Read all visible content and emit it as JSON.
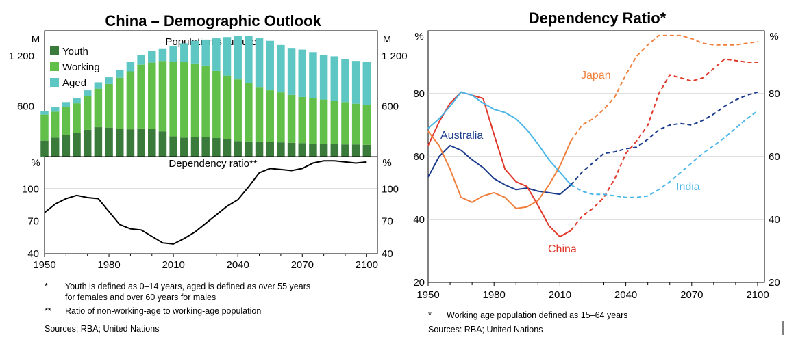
{
  "left_panel": {
    "title": "China – Demographic Outlook",
    "footnotes": [
      {
        "mark": "*",
        "text": "Youth is defined as 0–14 years, aged is defined as over 55 years"
      },
      {
        "mark": "",
        "text": "for females and over 60 years for males"
      },
      {
        "mark": "**",
        "text": "Ratio of non-working-age to working-age population"
      }
    ],
    "sources": "Sources:   RBA; United Nations"
  },
  "right_panel": {
    "title": "Dependency Ratio*",
    "footnotes": [
      {
        "mark": "*",
        "text": "Working age population defined as 15–64 years"
      }
    ],
    "sources": "Sources:   RBA; United Nations"
  },
  "colors": {
    "youth": "#3a7a3a",
    "working": "#62bf4a",
    "aged": "#5ec7c3",
    "australia": "#1a3a8c",
    "china": "#e0392b",
    "japan": "#f07f3c",
    "india": "#4ab6e8",
    "line": "#000000",
    "grid": "#c0c0c0"
  },
  "chart_data": [
    {
      "type": "bar",
      "stacked": true,
      "title": "Population structure*",
      "unit_left": "M",
      "unit_right": "M",
      "ylim": [
        0,
        1500
      ],
      "yticks": [
        600,
        1200
      ],
      "categories": [
        1950,
        1955,
        1960,
        1965,
        1970,
        1975,
        1980,
        1985,
        1990,
        1995,
        2000,
        2005,
        2010,
        2015,
        2020,
        2025,
        2030,
        2035,
        2040,
        2045,
        2050,
        2055,
        2060,
        2065,
        2070,
        2075,
        2080,
        2085,
        2090,
        2095,
        2100
      ],
      "series": [
        {
          "name": "Youth",
          "values": [
            190,
            225,
            255,
            285,
            320,
            350,
            345,
            330,
            325,
            335,
            330,
            300,
            240,
            225,
            230,
            230,
            220,
            205,
            185,
            180,
            180,
            175,
            170,
            165,
            160,
            155,
            150,
            150,
            145,
            145,
            140
          ]
        },
        {
          "name": "Working",
          "values": [
            310,
            310,
            340,
            350,
            400,
            460,
            520,
            610,
            690,
            760,
            790,
            840,
            890,
            900,
            880,
            855,
            800,
            760,
            735,
            700,
            650,
            615,
            595,
            570,
            550,
            545,
            530,
            515,
            505,
            485,
            475
          ]
        },
        {
          "name": "Aged",
          "values": [
            45,
            55,
            55,
            60,
            70,
            75,
            80,
            95,
            115,
            120,
            140,
            150,
            190,
            225,
            270,
            310,
            390,
            460,
            520,
            560,
            580,
            590,
            565,
            560,
            565,
            545,
            535,
            530,
            510,
            510,
            510
          ]
        }
      ],
      "legend": "top-left"
    },
    {
      "type": "line",
      "title": "Dependency ratio**",
      "unit_left": "%",
      "unit_right": "%",
      "xlim": [
        1950,
        2105
      ],
      "ylim": [
        40,
        130
      ],
      "yticks": [
        40,
        70,
        100
      ],
      "xticks": [
        1950,
        1980,
        2010,
        2040,
        2070,
        2100
      ],
      "x": [
        1950,
        1955,
        1960,
        1965,
        1970,
        1975,
        1980,
        1985,
        1990,
        1995,
        2000,
        2005,
        2010,
        2015,
        2020,
        2025,
        2030,
        2035,
        2040,
        2045,
        2050,
        2055,
        2060,
        2065,
        2070,
        2075,
        2080,
        2085,
        2090,
        2095,
        2100
      ],
      "values": [
        78,
        86,
        91,
        94,
        92,
        91,
        79,
        67,
        63,
        62,
        56,
        50,
        49,
        54,
        60,
        68,
        76,
        84,
        90,
        102,
        115,
        119,
        118,
        117,
        119,
        124,
        126,
        126,
        125,
        124,
        125
      ]
    },
    {
      "type": "line",
      "title": "",
      "unit_left": "%",
      "unit_right": "%",
      "xlim": [
        1950,
        2100
      ],
      "ylim": [
        20,
        100
      ],
      "yticks": [
        20,
        40,
        60,
        80
      ],
      "xticks": [
        1950,
        1980,
        2010,
        2040,
        2070,
        2100
      ],
      "projection_start": 2015,
      "series": [
        {
          "name": "Australia",
          "x": [
            1950,
            1955,
            1960,
            1965,
            1970,
            1975,
            1980,
            1985,
            1990,
            1995,
            2000,
            2005,
            2010,
            2015,
            2020,
            2025,
            2030,
            2035,
            2040,
            2045,
            2050,
            2055,
            2060,
            2065,
            2070,
            2075,
            2080,
            2085,
            2090,
            2095,
            2100
          ],
          "values": [
            53.5,
            60,
            63.5,
            62,
            59,
            56.5,
            53,
            51,
            49.5,
            50,
            49,
            48.5,
            48,
            51,
            55,
            58,
            61,
            61.5,
            62.5,
            63,
            65.5,
            68.5,
            70,
            70.5,
            70,
            71.5,
            73.5,
            76,
            78,
            79.5,
            80.5
          ]
        },
        {
          "name": "China",
          "x": [
            1950,
            1955,
            1960,
            1965,
            1970,
            1975,
            1980,
            1985,
            1990,
            1995,
            2000,
            2005,
            2010,
            2015,
            2020,
            2025,
            2030,
            2035,
            2040,
            2045,
            2050,
            2055,
            2060,
            2065,
            2070,
            2075,
            2080,
            2085,
            2090,
            2095,
            2100
          ],
          "values": [
            63.5,
            71,
            77,
            80.5,
            79.5,
            78.5,
            67,
            56,
            52,
            50.5,
            44.5,
            38,
            34.5,
            36.5,
            41,
            43.5,
            47,
            53,
            61,
            65,
            70,
            80,
            86,
            85,
            84,
            85,
            88,
            91,
            90.5,
            90,
            90
          ]
        },
        {
          "name": "Japan",
          "x": [
            1950,
            1955,
            1960,
            1965,
            1970,
            1975,
            1980,
            1985,
            1990,
            1995,
            2000,
            2005,
            2010,
            2015,
            2020,
            2025,
            2030,
            2035,
            2040,
            2045,
            2050,
            2055,
            2060,
            2065,
            2070,
            2075,
            2080,
            2085,
            2090,
            2095,
            2100
          ],
          "values": [
            68,
            63.5,
            56,
            47,
            45.5,
            47.5,
            48.5,
            47,
            43.5,
            44,
            46,
            51,
            57,
            65,
            70,
            72,
            75,
            79,
            86,
            92,
            95.5,
            98.5,
            98.5,
            98.5,
            97.5,
            96,
            95.5,
            95.5,
            95.5,
            96,
            96.5
          ]
        },
        {
          "name": "India",
          "x": [
            1950,
            1955,
            1960,
            1965,
            1970,
            1975,
            1980,
            1985,
            1990,
            1995,
            2000,
            2005,
            2010,
            2015,
            2020,
            2025,
            2030,
            2035,
            2040,
            2045,
            2050,
            2055,
            2060,
            2065,
            2070,
            2075,
            2080,
            2085,
            2090,
            2095,
            2100
          ],
          "values": [
            69,
            72,
            76,
            80.5,
            79.5,
            77,
            75,
            74,
            72,
            68.5,
            64,
            59,
            55,
            51,
            49,
            48,
            48,
            47.5,
            47,
            47,
            47.5,
            49.5,
            52,
            55,
            58,
            61,
            63.5,
            66,
            69,
            72,
            74.5
          ]
        }
      ],
      "labels": [
        "Japan",
        "Australia",
        "China",
        "India"
      ]
    }
  ]
}
